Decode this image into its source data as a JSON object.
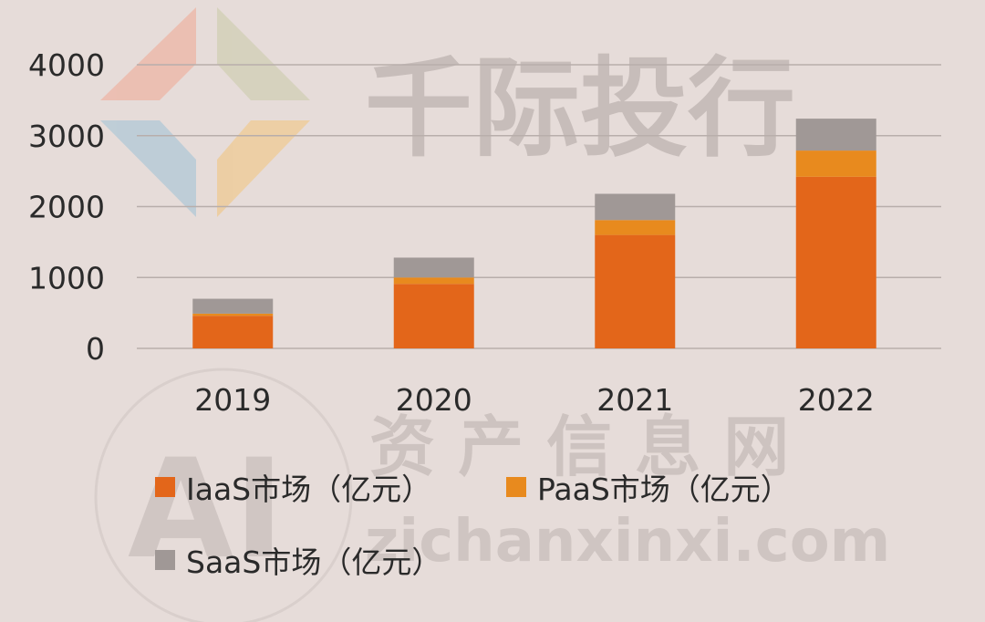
{
  "watermark": {
    "brand": "千际投行",
    "site_cn": "资 产 信 息 网",
    "site_url": "zichanxinxi.com",
    "badge": "AI"
  },
  "chart_data": {
    "type": "bar",
    "stacked": true,
    "categories": [
      "2019",
      "2020",
      "2021",
      "2022"
    ],
    "series": [
      {
        "name": "IaaS市场（亿元）",
        "color": "#e3661a",
        "values": [
          460,
          910,
          1600,
          2420
        ]
      },
      {
        "name": "PaaS市场（亿元）",
        "color": "#e88a1e",
        "values": [
          30,
          90,
          210,
          370
        ]
      },
      {
        "name": "SaaS市场（亿元）",
        "color": "#a09896",
        "values": [
          210,
          280,
          370,
          450
        ]
      }
    ],
    "ylim": [
      0,
      4000
    ],
    "yticks": [
      "0",
      "1000",
      "2000",
      "3000",
      "4000"
    ],
    "grid": true,
    "legend_position": "bottom"
  }
}
